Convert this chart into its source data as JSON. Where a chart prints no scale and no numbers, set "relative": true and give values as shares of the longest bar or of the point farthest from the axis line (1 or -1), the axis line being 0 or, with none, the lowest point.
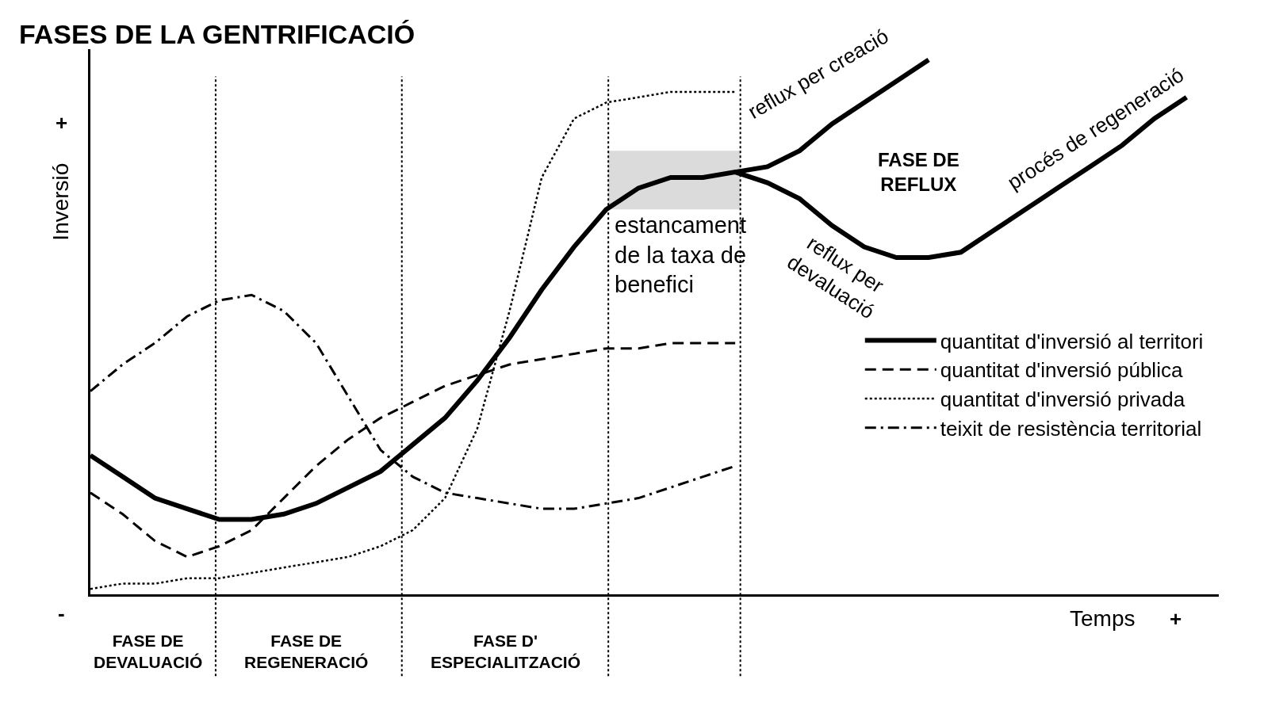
{
  "chart_data": {
    "type": "line",
    "title": "FASES DE LA GENTRIFICACIÓ",
    "xlabel": "Temps",
    "ylabel": "Inversió",
    "relative": true,
    "grid": false,
    "legend": "right",
    "categories": [
      null,
      null,
      null,
      null,
      null,
      null,
      null,
      null,
      null,
      null,
      null,
      null,
      null,
      null,
      null,
      null,
      null,
      null,
      null,
      null,
      null,
      null,
      null,
      null,
      null,
      null,
      null,
      null,
      null,
      null,
      null,
      null,
      null,
      null,
      null,
      null
    ],
    "series": [
      {
        "name": "quantitat d'inversió al territori",
        "color": "#000000",
        "line_style": "solid",
        "values": [
          0.26,
          0.22,
          0.18,
          0.16,
          0.14,
          0.14,
          0.15,
          0.17,
          0.2,
          0.23,
          0.28,
          0.33,
          0.4,
          0.48,
          0.57,
          0.65,
          0.72,
          0.76,
          0.78,
          0.78,
          0.79,
          0.77,
          0.74,
          0.69,
          0.65,
          0.63,
          0.63,
          0.64,
          0.68,
          0.72,
          0.76,
          0.8,
          0.84,
          0.89,
          0.93,
          null
        ]
      },
      {
        "name": "quantitat d'inversió pública",
        "color": "#000000",
        "line_style": "dashed",
        "values": [
          0.19,
          0.15,
          0.1,
          0.07,
          0.09,
          0.12,
          0.18,
          0.24,
          0.29,
          0.33,
          0.36,
          0.39,
          0.41,
          0.43,
          0.44,
          0.45,
          0.46,
          0.46,
          0.47,
          0.47,
          0.47,
          null,
          null,
          null,
          null,
          null,
          null,
          null,
          null,
          null,
          null,
          null,
          null,
          null,
          null,
          null
        ]
      },
      {
        "name": "quantitat d'inversió privada",
        "color": "#000000",
        "line_style": "dotted",
        "values": [
          0.01,
          0.02,
          0.02,
          0.03,
          0.03,
          0.04,
          0.05,
          0.06,
          0.07,
          0.09,
          0.12,
          0.18,
          0.31,
          0.53,
          0.78,
          0.89,
          0.92,
          0.93,
          0.94,
          0.94,
          0.94,
          null,
          null,
          null,
          null,
          null,
          null,
          null,
          null,
          null,
          null,
          null,
          null,
          null,
          null,
          null
        ]
      },
      {
        "name": "teixit de resistència territorial",
        "color": "#000000",
        "line_style": "dashdot",
        "values": [
          0.38,
          0.43,
          0.47,
          0.52,
          0.55,
          0.56,
          0.53,
          0.47,
          0.37,
          0.27,
          0.22,
          0.19,
          0.18,
          0.17,
          0.16,
          0.16,
          0.17,
          0.18,
          0.2,
          0.22,
          0.24,
          null,
          null,
          null,
          null,
          null,
          null,
          null,
          null,
          null,
          null,
          null,
          null,
          null,
          null,
          null
        ]
      },
      {
        "color": "#000000",
        "line_style": "solid",
        "values": [
          null,
          null,
          null,
          null,
          null,
          null,
          null,
          null,
          null,
          null,
          null,
          null,
          null,
          null,
          null,
          null,
          null,
          null,
          null,
          null,
          0.79,
          0.8,
          0.83,
          0.88,
          0.92,
          0.96,
          1,
          null,
          null,
          null,
          null,
          null,
          null,
          null,
          null,
          null
        ]
      }
    ],
    "annotations": [
      "reflux per creació",
      "procés de regeneració",
      "reflux per\ndevaluació",
      "FASE DE\nREFLUX",
      "FASE DE\nDEVALUACIÓ",
      "FASE DE\nREGENERACIÓ",
      "FASE D'\nESPECIALITZACIÓ",
      "+",
      "-",
      "+"
    ],
    "bands": [
      {
        "axis": "y",
        "from": 0.72,
        "to": 0.83,
        "label": "estancament\nde la taxa de\nbenefici",
        "color": "#b0b0b0"
      }
    ]
  }
}
